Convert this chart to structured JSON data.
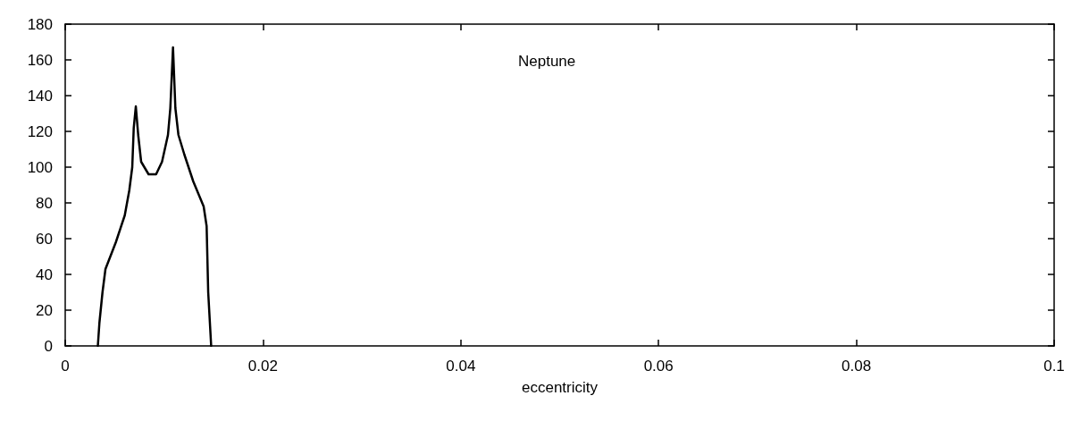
{
  "chart_data": {
    "type": "line",
    "xlabel": "eccentricity",
    "annotations": [
      "Neptune"
    ],
    "xlim": [
      0,
      0.1
    ],
    "xticks": [
      0,
      0.02,
      0.04,
      0.06,
      0.08,
      0.1
    ],
    "ylim": [
      0,
      180
    ],
    "yticks": [
      0,
      20,
      40,
      60,
      80,
      100,
      120,
      140,
      160,
      180
    ],
    "grid": false,
    "marker": "none",
    "line_style": "solid",
    "series": [
      {
        "color": "#000000",
        "x": [
          0.0033,
          0.00346,
          0.00377,
          0.00407,
          0.00512,
          0.00602,
          0.00648,
          0.00678,
          0.00693,
          0.00714,
          0.00738,
          0.00768,
          0.00843,
          0.00919,
          0.00979,
          0.01039,
          0.01063,
          0.0109,
          0.01114,
          0.01145,
          0.01205,
          0.01295,
          0.014,
          0.0143,
          0.01446,
          0.01476
        ],
        "values": [
          0,
          13,
          30,
          43,
          58,
          73,
          87,
          100,
          122,
          134,
          118,
          103,
          96,
          96,
          103,
          118,
          133,
          167,
          133,
          118,
          107,
          92,
          78,
          67,
          30,
          0
        ]
      }
    ]
  }
}
